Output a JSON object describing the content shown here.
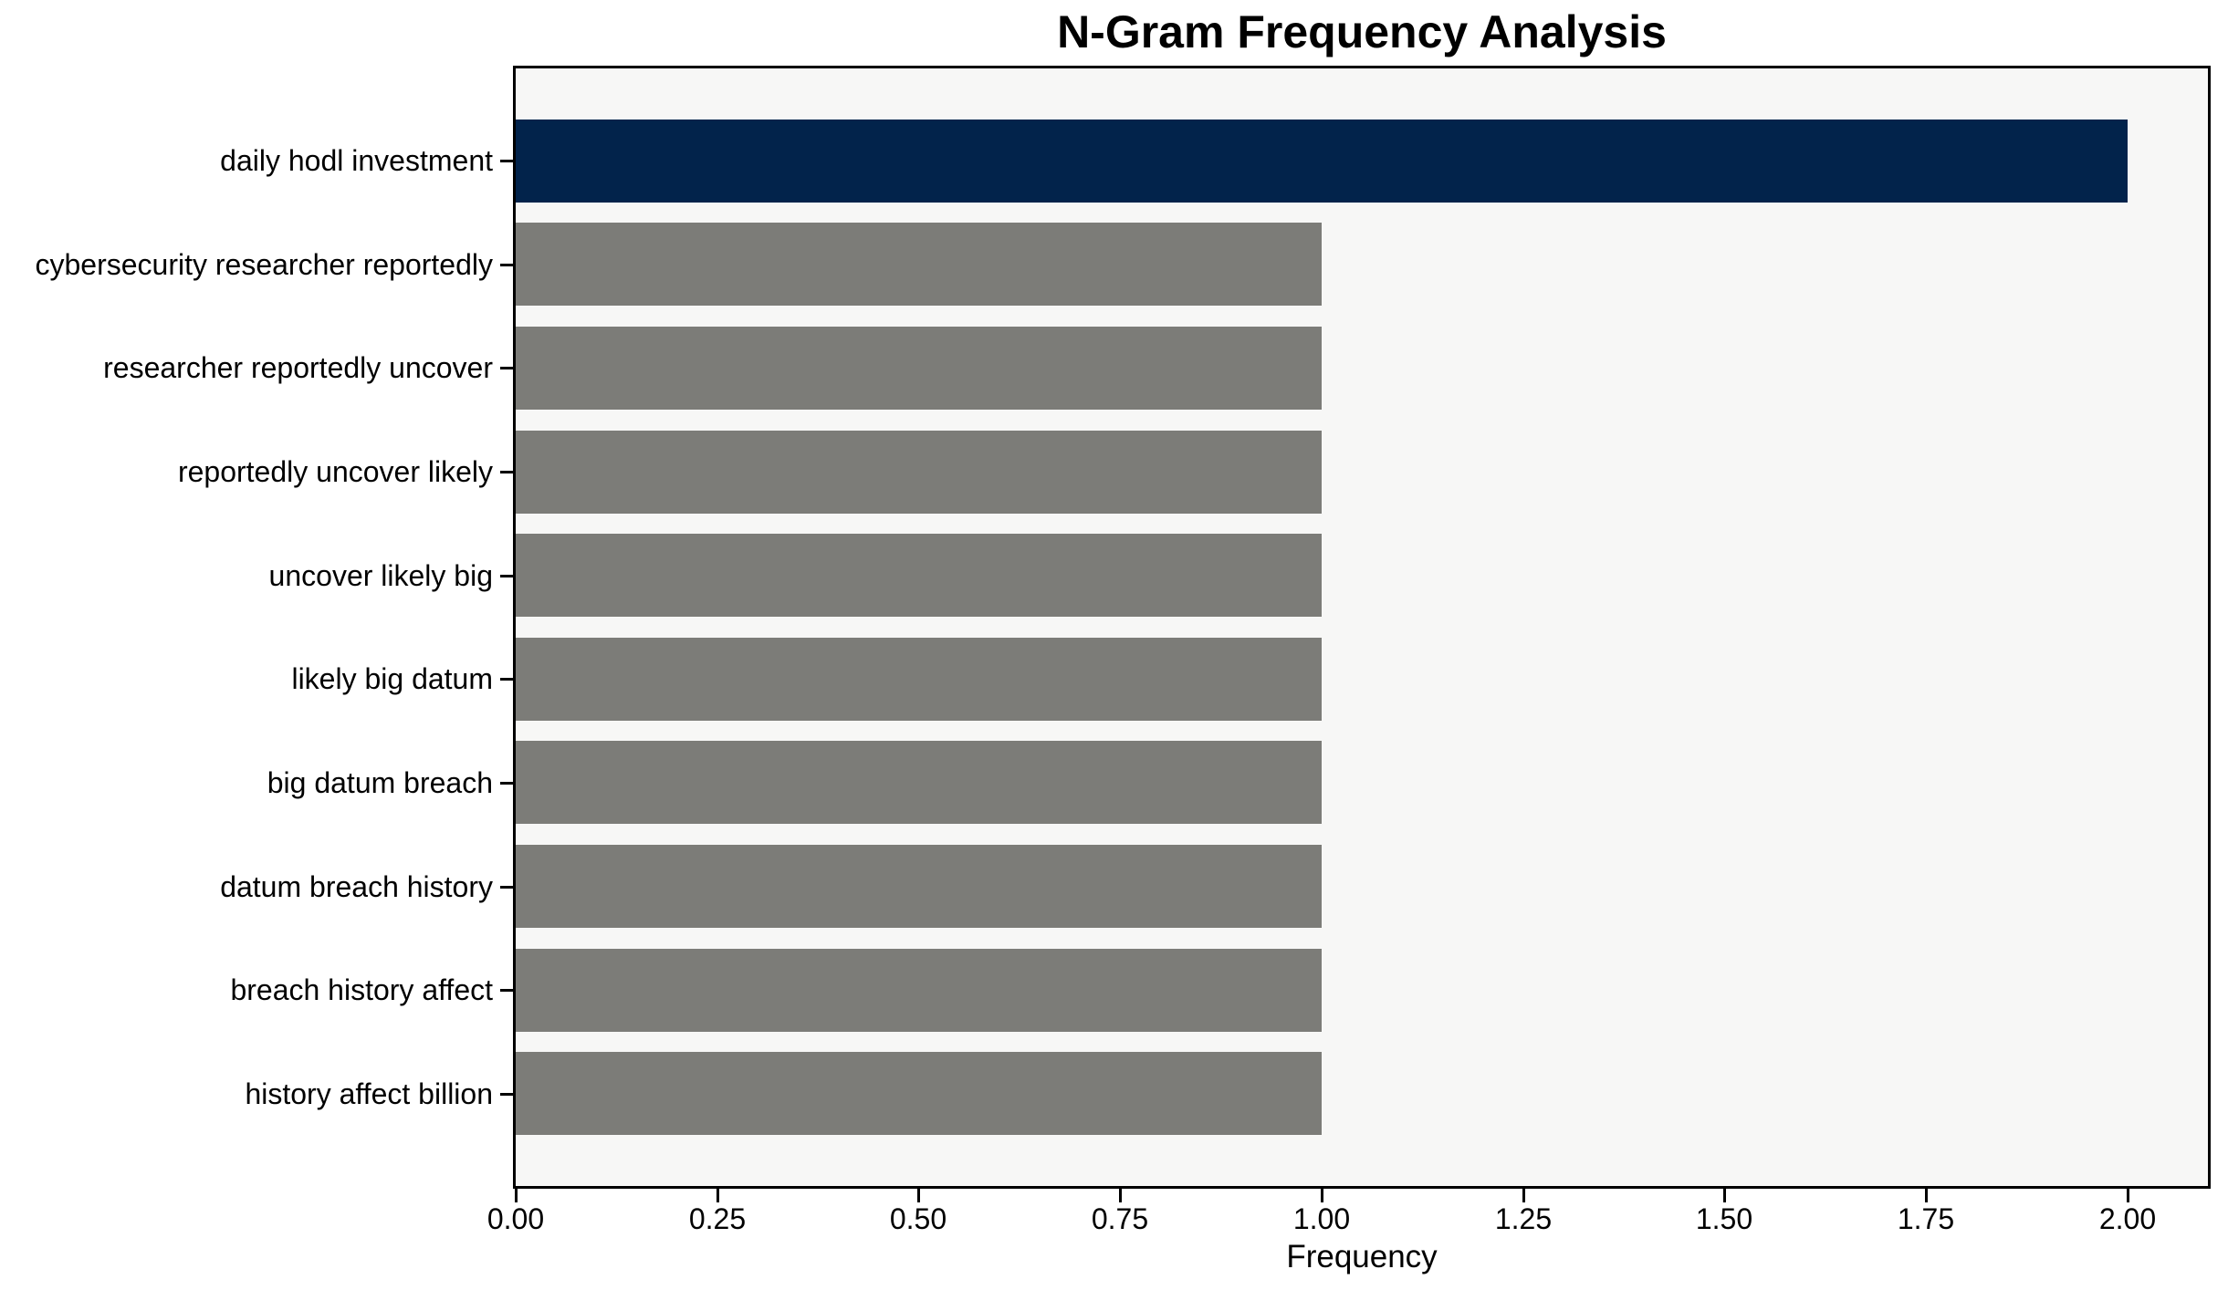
{
  "chart_data": {
    "type": "bar",
    "orientation": "horizontal",
    "title": "N-Gram Frequency Analysis",
    "xlabel": "Frequency",
    "ylabel": "",
    "categories": [
      "daily hodl investment",
      "cybersecurity researcher reportedly",
      "researcher reportedly uncover",
      "reportedly uncover likely",
      "uncover likely big",
      "likely big datum",
      "big datum breach",
      "datum breach history",
      "breach history affect",
      "history affect billion"
    ],
    "values": [
      2,
      1,
      1,
      1,
      1,
      1,
      1,
      1,
      1,
      1
    ],
    "bar_colors": [
      "#02234b",
      "#7c7c78",
      "#7c7c78",
      "#7c7c78",
      "#7c7c78",
      "#7c7c78",
      "#7c7c78",
      "#7c7c78",
      "#7c7c78",
      "#7c7c78"
    ],
    "xlim": [
      0,
      2.1
    ],
    "xticks": [
      "0.00",
      "0.25",
      "0.50",
      "0.75",
      "1.00",
      "1.25",
      "1.50",
      "1.75",
      "2.00"
    ],
    "xtick_values": [
      0,
      0.25,
      0.5,
      0.75,
      1.0,
      1.25,
      1.5,
      1.75,
      2.0
    ],
    "grid": false,
    "legend": null,
    "colors": {
      "highlight": "#02234b",
      "default": "#7c7c78",
      "plot_background": "#f7f7f6",
      "figure_background": "#ffffff",
      "spine": "#000000",
      "text": "#000000"
    }
  }
}
